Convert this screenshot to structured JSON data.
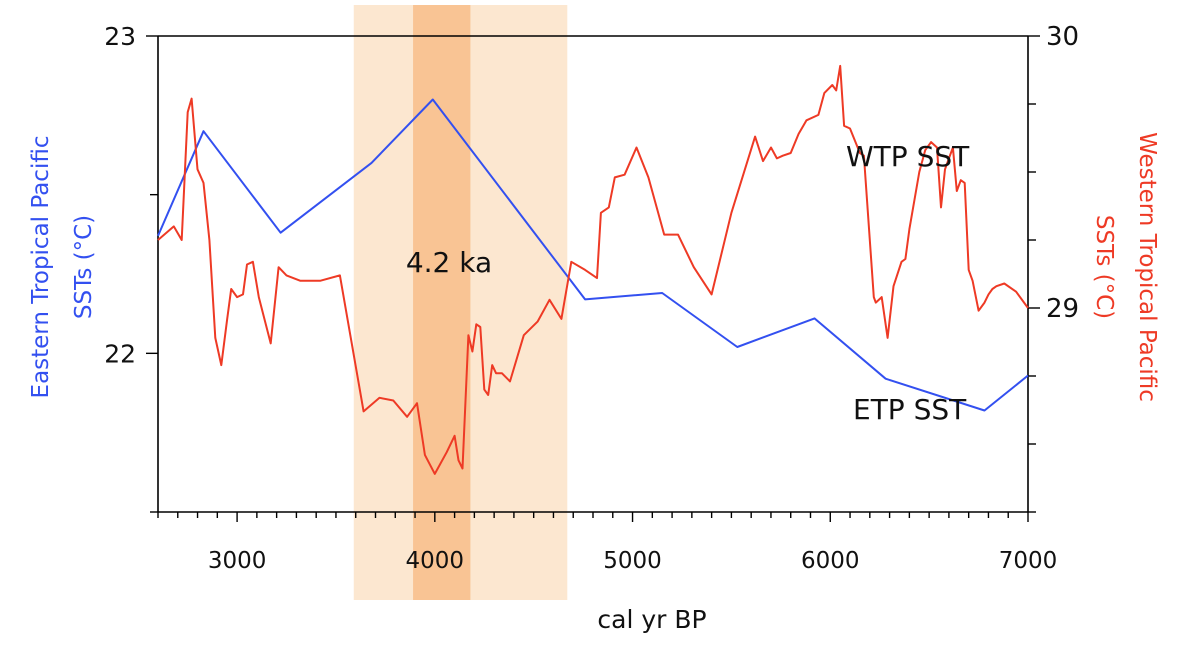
{
  "chart_data": {
    "type": "line",
    "xlabel": "cal yr BP",
    "x_range": [
      2600,
      7000
    ],
    "x_ticks": [
      3000,
      4000,
      5000,
      6000,
      7000
    ],
    "left_axis": {
      "label_line1": "Eastern Tropical Pacific",
      "label_line2": "SSTs (°C)",
      "range": [
        21.5,
        23
      ],
      "ticks": [
        22,
        23
      ],
      "color": "#3350f0"
    },
    "right_axis": {
      "label_line1": "Western Tropical Pacific",
      "label_line2": "SSTs (°C)",
      "range": [
        28.25,
        30
      ],
      "ticks": [
        29,
        30
      ],
      "color": "#ee3a25"
    },
    "series": [
      {
        "name": "ETP SST",
        "axis": "left",
        "color": "#3350f0",
        "x": [
          2600,
          2830,
          3220,
          3680,
          3990,
          4760,
          5150,
          5530,
          5920,
          6280,
          6780,
          7000
        ],
        "y": [
          22.37,
          22.7,
          22.38,
          22.6,
          22.8,
          22.17,
          22.19,
          22.02,
          22.11,
          21.92,
          21.82,
          21.93
        ]
      },
      {
        "name": "WTP SST",
        "axis": "right",
        "color": "#ee3a25",
        "x": [
          2600,
          2680,
          2720,
          2750,
          2770,
          2800,
          2830,
          2860,
          2890,
          2920,
          2950,
          2970,
          3000,
          3030,
          3050,
          3080,
          3110,
          3170,
          3210,
          3250,
          3320,
          3420,
          3520,
          3640,
          3720,
          3790,
          3860,
          3910,
          3950,
          4000,
          4060,
          4100,
          4120,
          4140,
          4170,
          4190,
          4210,
          4230,
          4250,
          4270,
          4290,
          4310,
          4340,
          4380,
          4450,
          4520,
          4580,
          4640,
          4690,
          4760,
          4820,
          4840,
          4880,
          4910,
          4960,
          5020,
          5080,
          5160,
          5230,
          5310,
          5400,
          5500,
          5620,
          5660,
          5700,
          5730,
          5760,
          5800,
          5840,
          5880,
          5940,
          5970,
          6010,
          6030,
          6050,
          6070,
          6100,
          6150,
          6170,
          6220,
          6230,
          6260,
          6290,
          6320,
          6360,
          6380,
          6400,
          6450,
          6480,
          6510,
          6540,
          6560,
          6580,
          6600,
          6620,
          6640,
          6660,
          6680,
          6700,
          6720,
          6750,
          6780,
          6800,
          6820,
          6840,
          6880,
          6940,
          7000
        ],
        "y": [
          29.25,
          29.3,
          29.25,
          29.72,
          29.77,
          29.51,
          29.46,
          29.25,
          28.89,
          28.79,
          28.96,
          29.07,
          29.04,
          29.05,
          29.16,
          29.17,
          29.04,
          28.87,
          29.15,
          29.12,
          29.1,
          29.1,
          29.12,
          28.62,
          28.67,
          28.66,
          28.6,
          28.65,
          28.46,
          28.39,
          28.47,
          28.53,
          28.44,
          28.41,
          28.9,
          28.84,
          28.94,
          28.93,
          28.7,
          28.68,
          28.79,
          28.76,
          28.76,
          28.73,
          28.9,
          28.95,
          29.03,
          28.96,
          29.17,
          29.14,
          29.11,
          29.35,
          29.37,
          29.48,
          29.49,
          29.59,
          29.48,
          29.27,
          29.27,
          29.15,
          29.05,
          29.35,
          29.63,
          29.54,
          29.59,
          29.55,
          29.56,
          29.57,
          29.64,
          29.69,
          29.71,
          29.79,
          29.82,
          29.8,
          29.89,
          29.67,
          29.66,
          29.57,
          29.56,
          29.04,
          29.02,
          29.04,
          28.89,
          29.08,
          29.17,
          29.18,
          29.29,
          29.5,
          29.58,
          29.61,
          29.59,
          29.37,
          29.51,
          29.55,
          29.59,
          29.43,
          29.47,
          29.46,
          29.14,
          29.1,
          28.99,
          29.02,
          29.05,
          29.07,
          29.08,
          29.09,
          29.06,
          29.0
        ]
      }
    ],
    "shaded_bands": [
      {
        "x_range": [
          3590,
          4670
        ],
        "color": "#f9ca97",
        "opacity": 0.45
      },
      {
        "x_range": [
          3890,
          4180
        ],
        "color": "#f5a862",
        "opacity": 0.55
      }
    ],
    "annotations": {
      "band_label": "4.2 ka",
      "wtp_label": "WTP SST",
      "etp_label": "ETP SST"
    },
    "grid": false
  }
}
